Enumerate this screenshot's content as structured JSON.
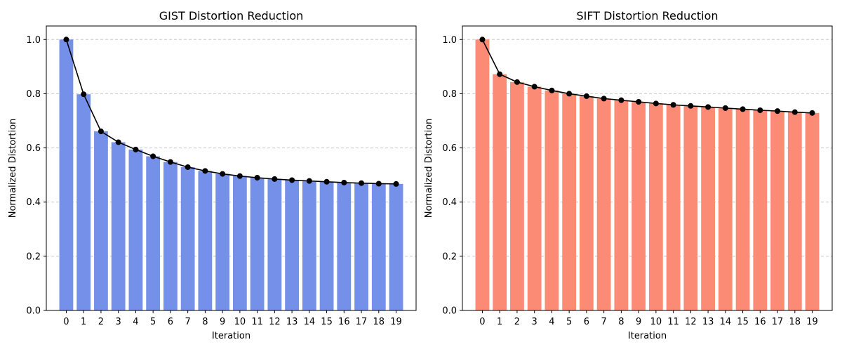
{
  "chart_data": [
    {
      "type": "bar",
      "title": "GIST Distortion Reduction",
      "xlabel": "Iteration",
      "ylabel": "Normalized Distortion",
      "categories": [
        "0",
        "1",
        "2",
        "3",
        "4",
        "5",
        "6",
        "7",
        "8",
        "9",
        "10",
        "11",
        "12",
        "13",
        "14",
        "15",
        "16",
        "17",
        "18",
        "19"
      ],
      "values": [
        1.0,
        0.798,
        0.661,
        0.621,
        0.594,
        0.569,
        0.548,
        0.529,
        0.515,
        0.504,
        0.496,
        0.49,
        0.485,
        0.481,
        0.478,
        0.475,
        0.472,
        0.47,
        0.468,
        0.467
      ],
      "line_overlay": true,
      "ylim": [
        0,
        1.05
      ],
      "yticks": [
        0.0,
        0.2,
        0.4,
        0.6,
        0.8,
        1.0
      ],
      "ytick_labels": [
        "0.0",
        "0.2",
        "0.4",
        "0.6",
        "0.8",
        "1.0"
      ],
      "grid": "y-dashed",
      "bar_color": "#7590e8",
      "line_color": "#000000"
    },
    {
      "type": "bar",
      "title": "SIFT Distortion Reduction",
      "xlabel": "Iteration",
      "ylabel": "Normalized Distortion",
      "categories": [
        "0",
        "1",
        "2",
        "3",
        "4",
        "5",
        "6",
        "7",
        "8",
        "9",
        "10",
        "11",
        "12",
        "13",
        "14",
        "15",
        "16",
        "17",
        "18",
        "19"
      ],
      "values": [
        1.0,
        0.872,
        0.843,
        0.826,
        0.812,
        0.8,
        0.791,
        0.782,
        0.776,
        0.77,
        0.764,
        0.759,
        0.755,
        0.751,
        0.747,
        0.743,
        0.739,
        0.736,
        0.732,
        0.729
      ],
      "line_overlay": true,
      "ylim": [
        0,
        1.05
      ],
      "yticks": [
        0.0,
        0.2,
        0.4,
        0.6,
        0.8,
        1.0
      ],
      "ytick_labels": [
        "0.0",
        "0.2",
        "0.4",
        "0.6",
        "0.8",
        "1.0"
      ],
      "grid": "y-dashed",
      "bar_color": "#fb8b74",
      "line_color": "#000000"
    }
  ]
}
